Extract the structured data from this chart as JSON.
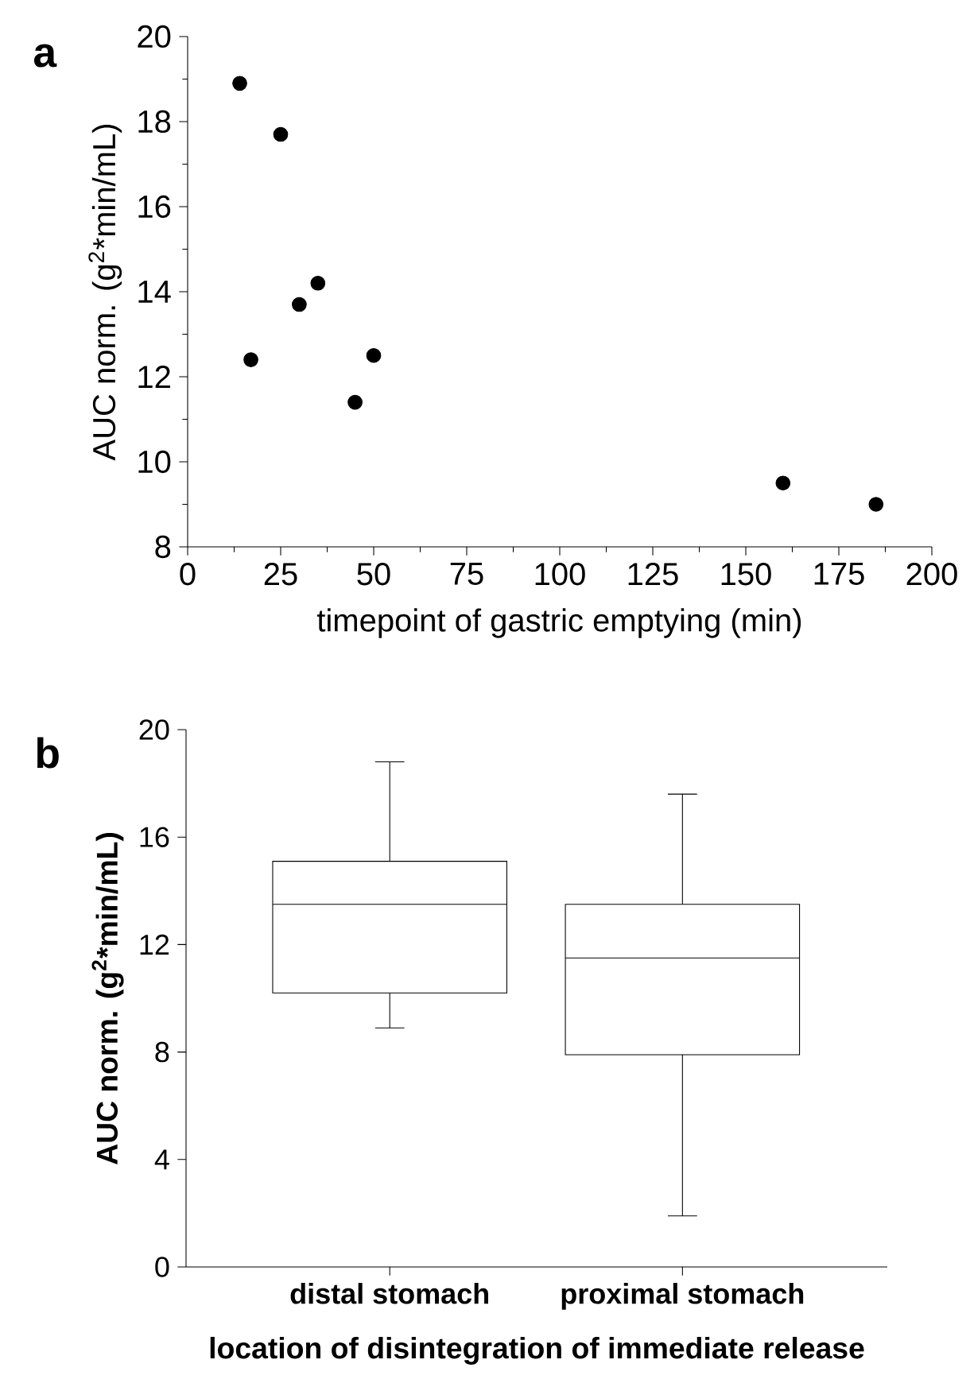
{
  "chart_data": [
    {
      "type": "scatter",
      "annotations": [
        "a"
      ],
      "xlabel": "timepoint of gastric emptying (min)",
      "ylabel": "AUC norm. (g$^{2}$*min/mL)",
      "x": [
        14,
        17,
        25,
        30,
        35,
        45,
        50,
        160,
        185
      ],
      "values": [
        18.9,
        12.4,
        17.7,
        13.7,
        14.2,
        11.4,
        12.5,
        9.5,
        9.0
      ],
      "color": "#000000",
      "marker": "circle",
      "xlim": [
        0,
        200
      ],
      "ylim": [
        8,
        20
      ],
      "xticks": [
        0,
        25,
        50,
        75,
        100,
        125,
        150,
        175,
        200
      ],
      "yticks": [
        8,
        10,
        12,
        14,
        16,
        18,
        20
      ]
    },
    {
      "type": "box",
      "annotations": [
        "b"
      ],
      "xlabel": "location of disintegration of immediate release",
      "ylabel": "AUC norm. (g$^{2}$*min/mL)",
      "categories": [
        "distal stomach",
        "proximal stomach"
      ],
      "boxes": [
        {
          "low": 8.9,
          "q1": 10.2,
          "median": 13.5,
          "q3": 15.1,
          "high": 18.8
        },
        {
          "low": 1.9,
          "q1": 7.9,
          "median": 11.5,
          "q3": 13.5,
          "high": 17.6
        }
      ],
      "color": "#000000",
      "ylim": [
        0,
        20
      ],
      "yticks": [
        0,
        4,
        8,
        12,
        16,
        20
      ]
    }
  ]
}
